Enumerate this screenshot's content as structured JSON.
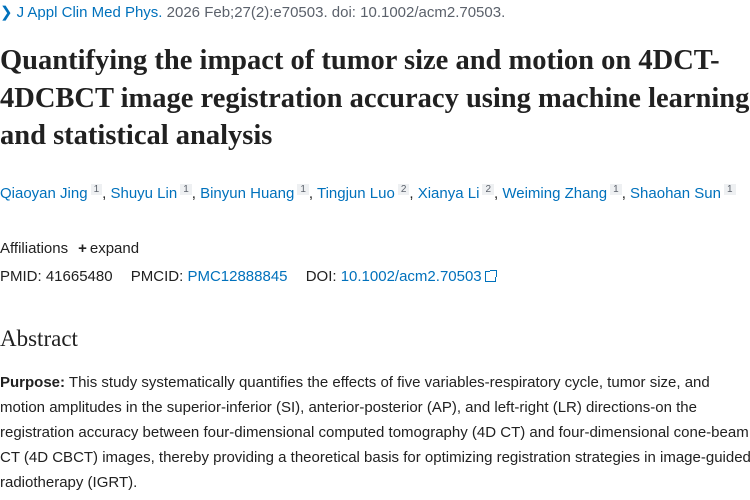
{
  "citation": {
    "journal": "J Appl Clin Med Phys.",
    "details": "2026 Feb;27(2):e70503. doi: 10.1002/acm2.70503."
  },
  "title": "Quantifying the impact of tumor size and motion on 4DCT-4DCBCT image registration accuracy using machine learning and statistical analysis",
  "authors": [
    {
      "name": "Qiaoyan Jing",
      "aff": "1"
    },
    {
      "name": "Shuyu Lin",
      "aff": "1"
    },
    {
      "name": "Binyun Huang",
      "aff": "1"
    },
    {
      "name": "Tingjun Luo",
      "aff": "2"
    },
    {
      "name": "Xianya Li",
      "aff": "2"
    },
    {
      "name": "Weiming Zhang",
      "aff": "1"
    },
    {
      "name": "Shaohan Sun",
      "aff": "1"
    }
  ],
  "affiliations": {
    "label": "Affiliations",
    "expand": "expand"
  },
  "ids": {
    "pmid_label": "PMID:",
    "pmid": "41665480",
    "pmcid_label": "PMCID:",
    "pmcid": "PMC12888845",
    "doi_label": "DOI:",
    "doi": "10.1002/acm2.70503"
  },
  "abstract": {
    "heading": "Abstract",
    "purpose_label": "Purpose:",
    "purpose_text": " This study systematically quantifies the effects of five variables-respiratory cycle, tumor size, and motion amplitudes in the superior-inferior (SI), anterior-posterior (AP), and left-right (LR) directions-on the registration accuracy between four-dimensional computed tomography (4D CT) and four-dimensional cone-beam CT (4D CBCT) images, thereby providing a theoretical basis for optimizing registration strategies in image-guided radiotherapy (IGRT)."
  },
  "colors": {
    "link": "#0071bc",
    "text": "#212121",
    "muted": "#5b616b"
  }
}
